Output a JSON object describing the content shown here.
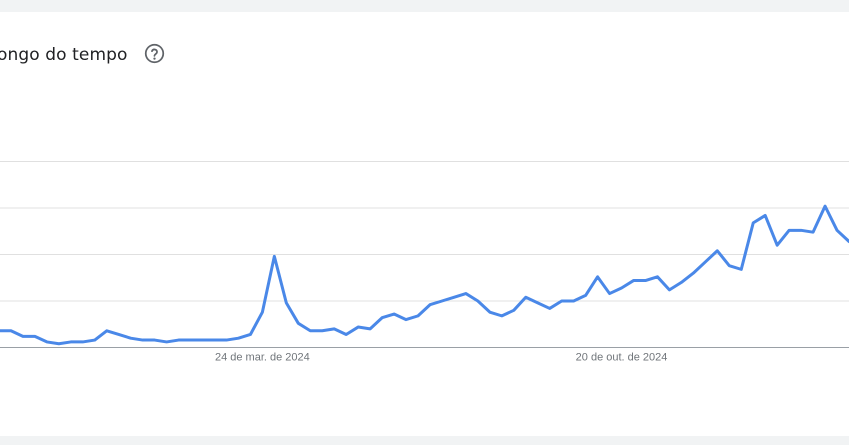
{
  "card": {
    "title": "ongo do tempo",
    "help_icon": "help-circle-icon"
  },
  "colors": {
    "line": "#4a88e8",
    "grid": "#e0e0e0",
    "axis": "#9aa0a6",
    "tick_text": "#70757a",
    "card_bg": "#ffffff",
    "page_bg": "#f1f3f4"
  },
  "chart_data": {
    "type": "line",
    "title": "",
    "xlabel": "",
    "ylabel": "",
    "ylim": [
      0,
      100
    ],
    "grid": true,
    "gridlines_y": [
      25,
      50,
      75,
      100
    ],
    "x_ticks": [
      {
        "index": 22,
        "label": "24 de mar. de 2024"
      },
      {
        "index": 52,
        "label": "20 de out. de 2024"
      }
    ],
    "series": [
      {
        "name": "",
        "values": [
          9,
          9,
          6,
          6,
          3,
          2,
          3,
          3,
          4,
          9,
          7,
          5,
          4,
          4,
          3,
          4,
          4,
          4,
          4,
          4,
          5,
          7,
          19,
          49,
          24,
          13,
          9,
          9,
          10,
          7,
          11,
          10,
          16,
          18,
          15,
          17,
          23,
          25,
          27,
          29,
          25,
          19,
          17,
          20,
          27,
          24,
          21,
          25,
          25,
          28,
          38,
          29,
          32,
          36,
          36,
          38,
          31,
          35,
          40,
          46,
          52,
          44,
          42,
          67,
          71,
          55,
          63,
          63,
          62,
          76,
          63,
          57
        ]
      }
    ]
  }
}
